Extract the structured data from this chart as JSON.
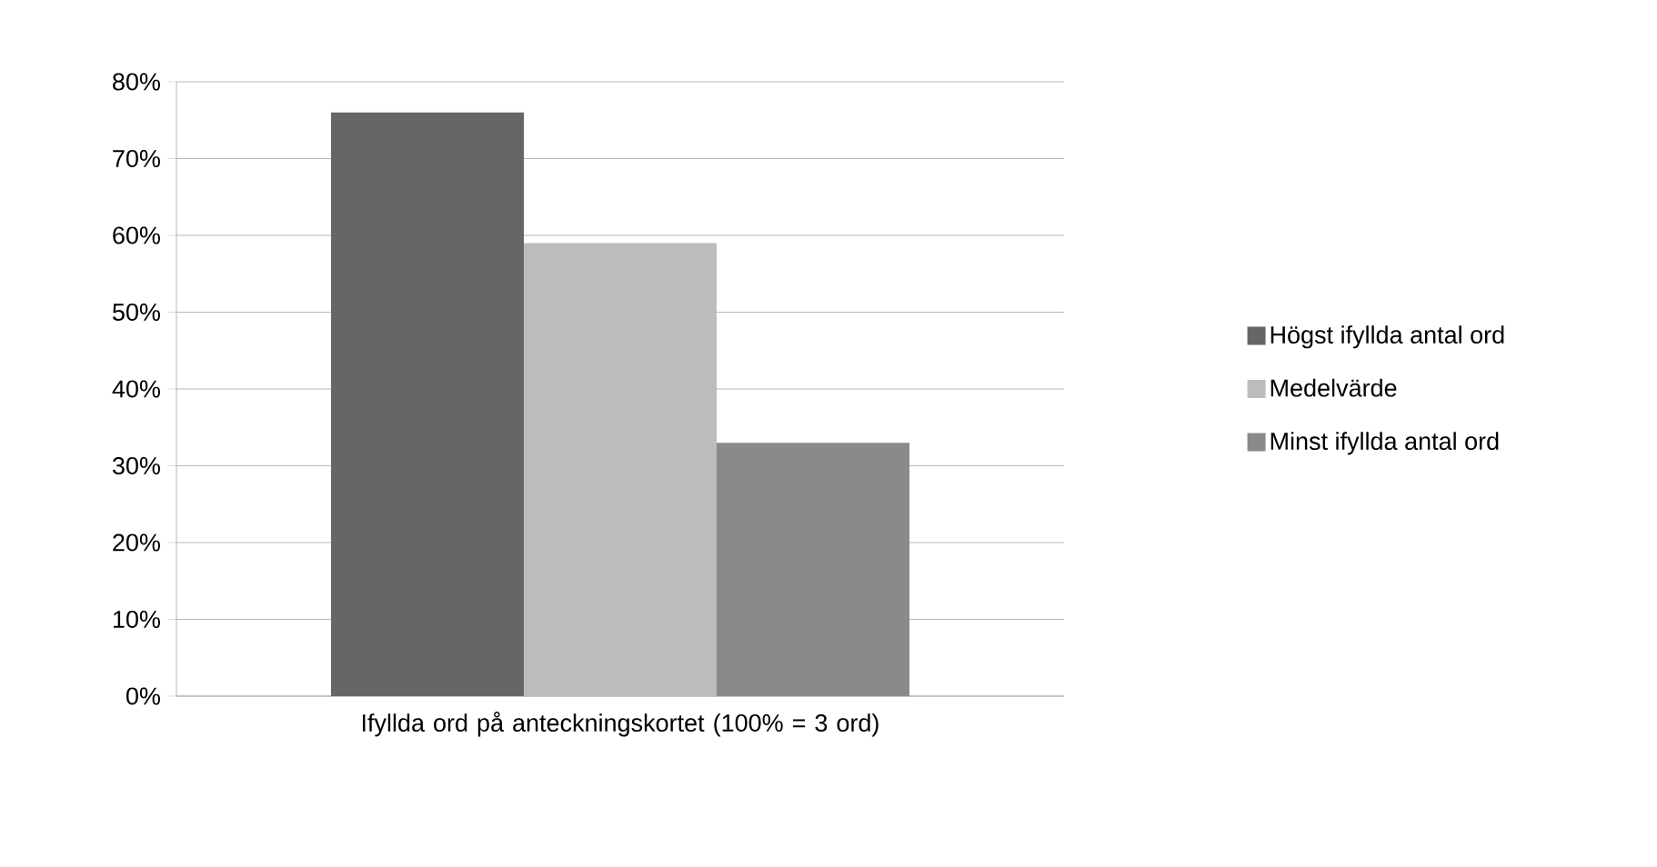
{
  "chart_data": {
    "type": "bar",
    "categories": [
      "Ifyllda ord på anteckningskortet (100% = 3 ord)"
    ],
    "series": [
      {
        "name": "Högst ifyllda antal ord",
        "color": "#666666",
        "values": [
          76
        ]
      },
      {
        "name": "Medelvärde",
        "color": "#bcbcbc",
        "values": [
          59
        ]
      },
      {
        "name": "Minst ifyllda antal ord",
        "color": "#8a8a8a",
        "values": [
          33
        ]
      }
    ],
    "ylim": [
      0,
      80
    ],
    "yticks": [
      {
        "value": 0,
        "label": "0%"
      },
      {
        "value": 10,
        "label": "10%"
      },
      {
        "value": 20,
        "label": "20%"
      },
      {
        "value": 30,
        "label": "30%"
      },
      {
        "value": 40,
        "label": "40%"
      },
      {
        "value": 50,
        "label": "50%"
      },
      {
        "value": 60,
        "label": "60%"
      },
      {
        "value": 70,
        "label": "70%"
      },
      {
        "value": 80,
        "label": "80%"
      }
    ],
    "grid": "y",
    "legend": "right"
  }
}
